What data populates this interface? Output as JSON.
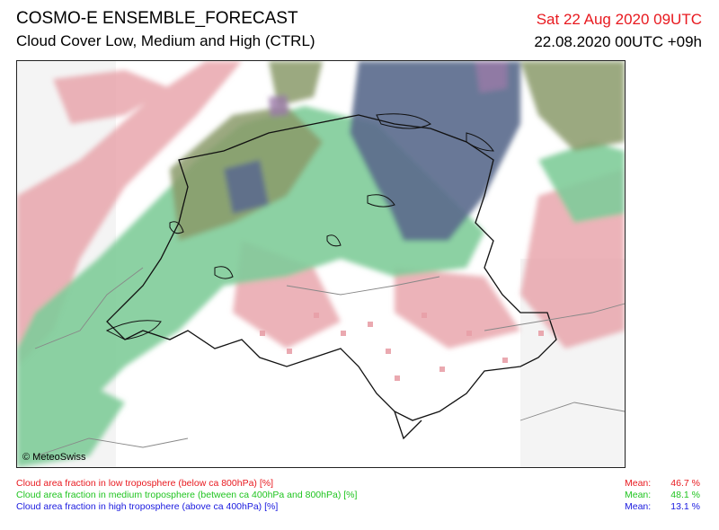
{
  "header": {
    "title": "COSMO-E ENSEMBLE_FORECAST",
    "subtitle": "Cloud Cover Low, Medium and High (CTRL)",
    "valid_time": "Sat 22 Aug 2020 09UTC",
    "run_time": "22.08.2020 00UTC +09h"
  },
  "map": {
    "copyright": "© MeteoSwiss",
    "colors": {
      "low": "#e8a0a8",
      "medium": "#80cc9a",
      "high": "#5a6a8c",
      "mixed": "#7a8a5a"
    }
  },
  "legend": [
    {
      "text": "Cloud area fraction in low troposphere (below ca 800hPa) [%]",
      "color": "#e8191f",
      "mean_label": "Mean:",
      "mean_value": "46.7 %"
    },
    {
      "text": "Cloud area fraction in medium troposphere (between ca 400hPa and 800hPa) [%]",
      "color": "#1fc41f",
      "mean_label": "Mean:",
      "mean_value": "48.1 %"
    },
    {
      "text": "Cloud area fraction in high troposphere (above ca 400hPa) [%]",
      "color": "#1a1adf",
      "mean_label": "Mean:",
      "mean_value": "13.1 %"
    }
  ]
}
